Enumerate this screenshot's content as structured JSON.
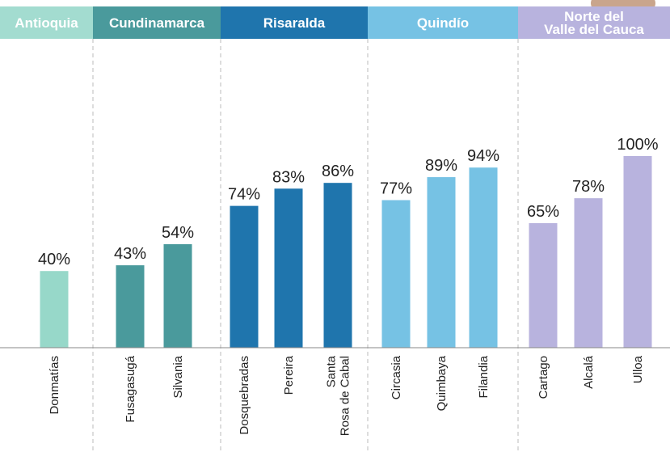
{
  "chart_data": {
    "type": "bar",
    "groups": [
      {
        "name": [
          "Antioquia"
        ],
        "color": "#97d8c9",
        "header_color": "#a3dcd0",
        "categories": [
          [
            "Donmatías"
          ]
        ],
        "values": [
          40
        ],
        "value_labels": [
          "40%"
        ]
      },
      {
        "name": [
          "Cundinamarca"
        ],
        "color": "#4a9a9c",
        "header_color": "#4a9a9c",
        "categories": [
          [
            "Fusagasugá"
          ],
          [
            "Silvania"
          ]
        ],
        "values": [
          43,
          54
        ],
        "value_labels": [
          "43%",
          "54%"
        ]
      },
      {
        "name": [
          "Risaralda"
        ],
        "color": "#1f75ad",
        "header_color": "#1f75ad",
        "categories": [
          [
            "Dosquebradas"
          ],
          [
            "Pereira"
          ],
          [
            "Santa",
            "Rosa de Cabal"
          ]
        ],
        "values": [
          74,
          83,
          86
        ],
        "value_labels": [
          "74%",
          "83%",
          "86%"
        ]
      },
      {
        "name": [
          "Quindío"
        ],
        "color": "#76c2e4",
        "header_color": "#76c2e4",
        "categories": [
          [
            "Circasia"
          ],
          [
            "Quimbaya"
          ],
          [
            "Filandia"
          ]
        ],
        "values": [
          77,
          89,
          94
        ],
        "value_labels": [
          "77%",
          "89%",
          "94%"
        ]
      },
      {
        "name": [
          "Norte del",
          "Valle del Cauca"
        ],
        "color": "#b8b3de",
        "header_color": "#b8b3de",
        "categories": [
          [
            "Cartago"
          ],
          [
            "Alcalá"
          ],
          [
            "Ulloa"
          ]
        ],
        "values": [
          65,
          78,
          100
        ],
        "value_labels": [
          "65%",
          "78%",
          "100%"
        ]
      }
    ]
  }
}
